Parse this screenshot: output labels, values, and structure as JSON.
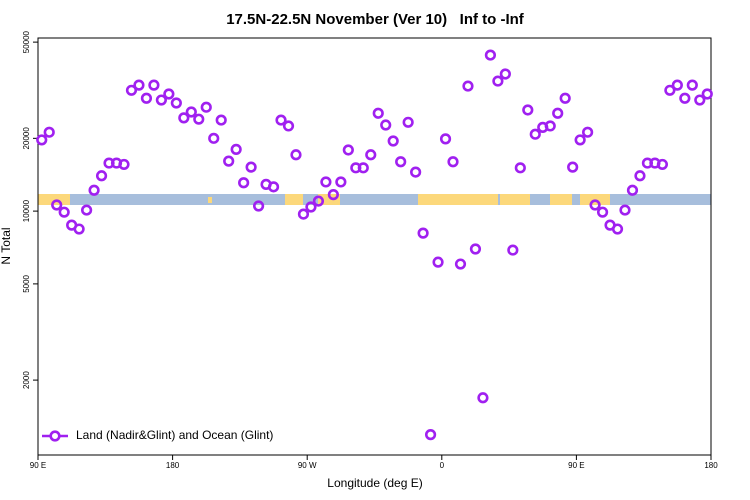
{
  "chart_data": {
    "type": "scatter",
    "title": "17.5N-22.5N November (Ver 10)   Inf to -Inf",
    "xlabel": "Longitude (deg E)",
    "ylabel": "N Total",
    "log_y": true,
    "legend": "bottom-left",
    "xlim": [
      90,
      540
    ],
    "ylim": [
      980,
      52000
    ],
    "xticks": [
      {
        "value": 90,
        "label": "90 E"
      },
      180,
      {
        "value": 270,
        "label": "90 W"
      },
      {
        "value": 360,
        "label": "0"
      },
      {
        "value": 450,
        "label": "90 E"
      },
      {
        "value": 540,
        "label": "180"
      }
    ],
    "yticks": [
      2000,
      5000,
      10000,
      20000,
      50000
    ],
    "series": [
      {
        "name": "Land (Nadir&Glint) and Ocean (Glint)",
        "color": "#a020f0",
        "x": [
          92.5,
          97.5,
          102.5,
          107.5,
          112.5,
          117.5,
          122.5,
          127.5,
          132.5,
          137.5,
          142.5,
          147.5,
          152.5,
          157.5,
          162.5,
          167.5,
          172.5,
          177.5,
          182.5,
          187.5,
          192.5,
          197.5,
          202.5,
          207.5,
          212.5,
          217.5,
          222.5,
          227.5,
          232.5,
          237.5,
          242.5,
          247.5,
          252.5,
          257.5,
          262.5,
          267.5,
          272.5,
          277.5,
          282.5,
          287.5,
          292.5,
          297.5,
          302.5,
          307.5,
          312.5,
          317.5,
          322.5,
          327.5,
          332.5,
          337.5,
          342.5,
          347.5,
          352.5,
          357.5,
          362.5,
          367.5,
          372.5,
          377.5,
          382.5,
          387.5,
          392.5,
          397.5,
          402.5,
          407.5,
          412.5,
          417.5,
          422.5,
          427.5,
          432.5,
          437.5,
          442.5,
          447.5,
          452.5,
          457.5,
          462.5,
          467.5,
          472.5,
          477.5,
          482.5,
          487.5,
          492.5,
          497.5,
          502.5,
          507.5,
          512.5,
          517.5,
          522.5,
          527.5,
          532.5,
          537.5
        ],
        "values": [
          19700,
          21200,
          10600,
          9900,
          8750,
          8430,
          10100,
          12200,
          14000,
          15800,
          15800,
          15600,
          31600,
          33200,
          29300,
          33200,
          28800,
          30500,
          28000,
          24300,
          25700,
          24000,
          26900,
          20000,
          23800,
          16100,
          18000,
          13100,
          15200,
          10500,
          12900,
          12600,
          23800,
          22500,
          17100,
          9720,
          10400,
          11000,
          13200,
          11700,
          13200,
          17900,
          15100,
          15100,
          17100,
          25400,
          22700,
          19500,
          16000,
          23300,
          14500,
          8110,
          1190,
          6150,
          19900,
          16000,
          6040,
          32900,
          6970,
          1690,
          44200,
          34500,
          36900,
          6900,
          15100,
          26200,
          20800,
          22200,
          22500,
          25400,
          29300,
          15200,
          19700,
          21200,
          10600,
          9900,
          8750,
          8430,
          10100,
          12200,
          14000,
          15800,
          15800,
          15600,
          31600,
          33200,
          29300,
          33200,
          28800,
          30500
        ]
      }
    ]
  }
}
